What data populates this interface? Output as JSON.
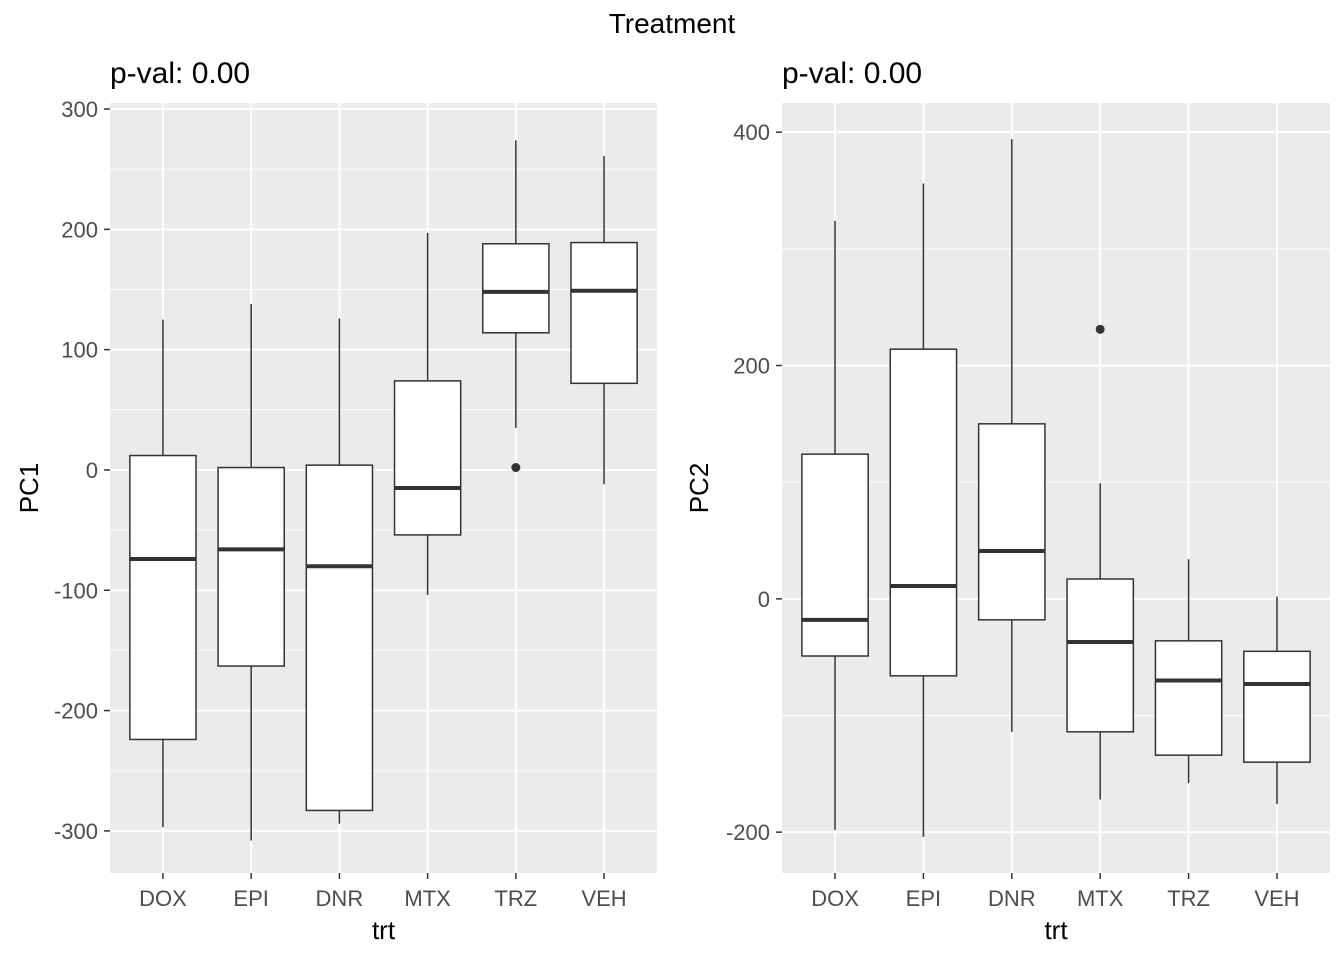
{
  "figure_title": "Treatment",
  "chart_data": [
    {
      "type": "box",
      "title": "p-val: 0.00",
      "xlabel": "trt",
      "ylabel": "PC1",
      "categories": [
        "DOX",
        "EPI",
        "DNR",
        "MTX",
        "TRZ",
        "VEH"
      ],
      "ylim": [
        -335,
        305
      ],
      "yticks": [
        -300,
        -200,
        -100,
        0,
        100,
        200,
        300
      ],
      "ytick_labels": [
        "-300",
        "-200",
        "-100",
        "0",
        "100",
        "200",
        "300"
      ],
      "grid": true,
      "boxes": [
        {
          "min": -297,
          "q1": -224,
          "median": -74,
          "q3": 12,
          "max": 125,
          "outliers": []
        },
        {
          "min": -308,
          "q1": -163,
          "median": -66,
          "q3": 2,
          "max": 138,
          "outliers": []
        },
        {
          "min": -294,
          "q1": -283,
          "median": -80,
          "q3": 4,
          "max": 126,
          "outliers": []
        },
        {
          "min": -104,
          "q1": -54,
          "median": -15,
          "q3": 74,
          "max": 197,
          "outliers": []
        },
        {
          "min": 35,
          "q1": 114,
          "median": 148,
          "q3": 188,
          "max": 274,
          "outliers": [
            2
          ]
        },
        {
          "min": -12,
          "q1": 72,
          "median": 149,
          "q3": 189,
          "max": 261,
          "outliers": []
        }
      ]
    },
    {
      "type": "box",
      "title": "p-val: 0.00",
      "xlabel": "trt",
      "ylabel": "PC2",
      "categories": [
        "DOX",
        "EPI",
        "DNR",
        "MTX",
        "TRZ",
        "VEH"
      ],
      "ylim": [
        -235,
        425
      ],
      "yticks": [
        -200,
        0,
        200,
        400
      ],
      "ytick_labels": [
        "-200",
        "0",
        "200",
        "400"
      ],
      "grid": true,
      "boxes": [
        {
          "min": -198,
          "q1": -49,
          "median": -18,
          "q3": 124,
          "max": 324,
          "outliers": []
        },
        {
          "min": -204,
          "q1": -66,
          "median": 11,
          "q3": 214,
          "max": 356,
          "outliers": []
        },
        {
          "min": -114,
          "q1": -18,
          "median": 41,
          "q3": 150,
          "max": 394,
          "outliers": []
        },
        {
          "min": -172,
          "q1": -114,
          "median": -37,
          "q3": 17,
          "max": 99,
          "outliers": [
            231
          ]
        },
        {
          "min": -158,
          "q1": -134,
          "median": -70,
          "q3": -36,
          "max": 34,
          "outliers": []
        },
        {
          "min": -176,
          "q1": -140,
          "median": -73,
          "q3": -45,
          "max": 2,
          "outliers": []
        }
      ]
    }
  ]
}
